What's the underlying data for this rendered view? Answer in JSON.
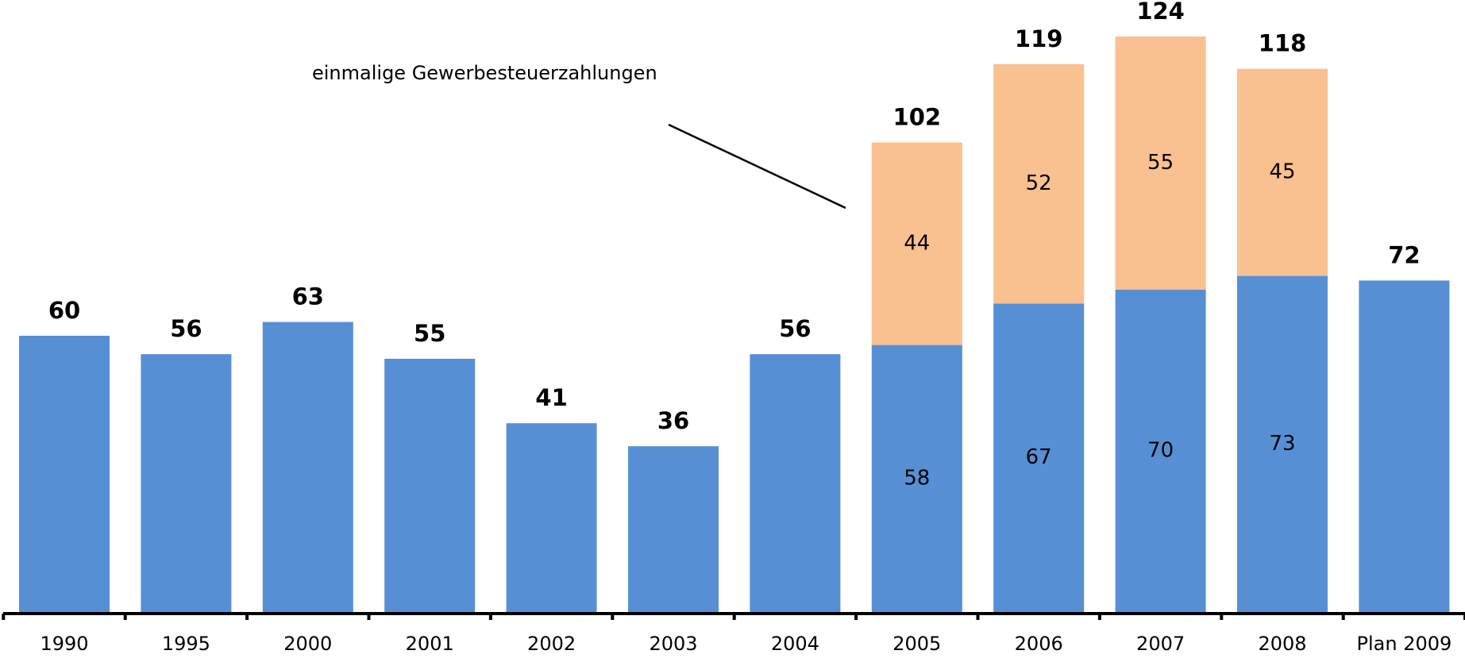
{
  "chart_data": {
    "type": "stacked_bar",
    "categories": [
      "1990",
      "1995",
      "2000",
      "2001",
      "2002",
      "2003",
      "2004",
      "2005",
      "2006",
      "2007",
      "2008",
      "Plan 2009"
    ],
    "series": [
      {
        "color": "#578fd5",
        "values": [
          60,
          56,
          63,
          55,
          41,
          36,
          56,
          58,
          67,
          70,
          73,
          72
        ]
      },
      {
        "name": "einmalige Gewerbesteuerzahlungen",
        "color": "#f9c090",
        "values": [
          null,
          null,
          null,
          null,
          null,
          null,
          null,
          44,
          52,
          55,
          45,
          null
        ]
      }
    ],
    "totals": [
      60,
      56,
      63,
      55,
      41,
      36,
      56,
      102,
      119,
      124,
      118,
      72
    ],
    "ylim": [
      0,
      130
    ]
  }
}
